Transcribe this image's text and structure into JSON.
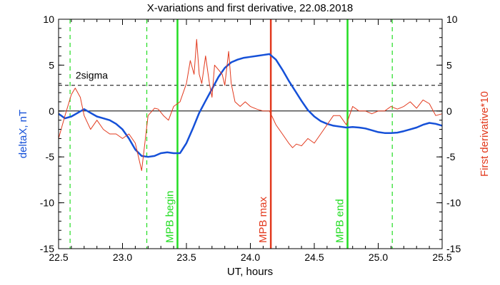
{
  "chart_data": {
    "type": "line",
    "title": "X-variations and first derivative, 22.08.2018",
    "xlabel": "UT, hours",
    "ylabel_left": "deltaX, nT",
    "ylabel_right": "First derivative*10",
    "xlim": [
      22.5,
      25.5
    ],
    "ylim": [
      -15,
      10
    ],
    "x_ticks": [
      "22.5",
      "23.0",
      "23.5",
      "24.0",
      "24.5",
      "25.0",
      "25.5"
    ],
    "y_ticks": [
      "10",
      "5",
      "0",
      "-5",
      "-10",
      "-15"
    ],
    "sigma": {
      "label": "2sigma",
      "value": 2.8
    },
    "colors": {
      "deltaX": "#1550d8",
      "derivative": "#e23a1e",
      "green": "#22dd22",
      "red": "#e23a1e",
      "axis": "#000000"
    },
    "vlines": [
      {
        "x": 22.59,
        "style": "dashed",
        "color": "green",
        "label": ""
      },
      {
        "x": 23.19,
        "style": "dashed",
        "color": "green",
        "label": ""
      },
      {
        "x": 23.43,
        "style": "solid",
        "color": "green",
        "label": "MPB begin"
      },
      {
        "x": 24.16,
        "style": "solid",
        "color": "red",
        "label": "MPB max"
      },
      {
        "x": 24.76,
        "style": "solid",
        "color": "green",
        "label": "MPB end"
      },
      {
        "x": 25.11,
        "style": "dashed",
        "color": "green",
        "label": ""
      }
    ],
    "series": [
      {
        "key": "deltaX",
        "x": [
          22.5,
          22.55,
          22.6,
          22.65,
          22.7,
          22.75,
          22.8,
          22.85,
          22.9,
          22.95,
          23.0,
          23.05,
          23.1,
          23.15,
          23.2,
          23.25,
          23.3,
          23.35,
          23.4,
          23.45,
          23.5,
          23.55,
          23.6,
          23.65,
          23.7,
          23.75,
          23.8,
          23.85,
          23.9,
          23.95,
          24.0,
          24.05,
          24.1,
          24.15,
          24.2,
          24.25,
          24.3,
          24.35,
          24.4,
          24.45,
          24.5,
          24.55,
          24.6,
          24.65,
          24.7,
          24.75,
          24.8,
          24.85,
          24.9,
          24.95,
          25.0,
          25.05,
          25.1,
          25.15,
          25.2,
          25.25,
          25.3,
          25.35,
          25.4,
          25.45,
          25.5
        ],
        "y": [
          -0.3,
          -0.8,
          -0.6,
          -0.2,
          0.2,
          -0.2,
          -0.6,
          -0.8,
          -1.0,
          -1.4,
          -2.0,
          -3.0,
          -4.2,
          -4.9,
          -5.0,
          -4.9,
          -4.6,
          -4.5,
          -4.6,
          -4.6,
          -3.5,
          -1.9,
          -0.2,
          1.1,
          2.4,
          3.7,
          4.7,
          5.3,
          5.6,
          5.8,
          5.9,
          6.0,
          6.1,
          6.2,
          5.6,
          4.5,
          3.3,
          2.2,
          1.1,
          0.1,
          -0.6,
          -1.1,
          -1.4,
          -1.6,
          -1.7,
          -1.8,
          -1.75,
          -1.8,
          -1.9,
          -2.1,
          -2.3,
          -2.4,
          -2.4,
          -2.35,
          -2.2,
          -2.0,
          -1.8,
          -1.5,
          -1.3,
          -1.4,
          -1.6
        ]
      },
      {
        "key": "derivative",
        "x": [
          22.5,
          22.55,
          22.6,
          22.63,
          22.67,
          22.7,
          22.75,
          22.8,
          22.85,
          22.9,
          22.95,
          23.0,
          23.05,
          23.1,
          23.15,
          23.2,
          23.25,
          23.28,
          23.32,
          23.36,
          23.4,
          23.45,
          23.5,
          23.53,
          23.56,
          23.58,
          23.6,
          23.62,
          23.65,
          23.68,
          23.7,
          23.72,
          23.75,
          23.78,
          23.8,
          23.83,
          23.85,
          23.88,
          23.92,
          23.96,
          24.0,
          24.05,
          24.1,
          24.15,
          24.2,
          24.25,
          24.3,
          24.33,
          24.36,
          24.4,
          24.45,
          24.5,
          24.55,
          24.6,
          24.65,
          24.7,
          24.75,
          24.8,
          24.85,
          24.9,
          24.95,
          25.0,
          25.05,
          25.1,
          25.15,
          25.2,
          25.25,
          25.3,
          25.35,
          25.4,
          25.45,
          25.5
        ],
        "y": [
          -3.0,
          -0.5,
          1.8,
          2.5,
          1.5,
          -0.5,
          -2.0,
          -1.0,
          -2.0,
          -2.5,
          -2.5,
          -3.0,
          -2.5,
          -3.5,
          -6.5,
          -0.5,
          0.3,
          0.2,
          -0.5,
          -1.0,
          0.5,
          1.0,
          3.0,
          5.5,
          4.0,
          7.8,
          4.0,
          3.0,
          6.0,
          3.0,
          1.5,
          5.0,
          4.5,
          4.0,
          2.8,
          6.5,
          3.0,
          1.0,
          0.5,
          1.0,
          0.5,
          0.2,
          0.0,
          0.0,
          -1.5,
          -2.5,
          -3.5,
          -4.0,
          -3.6,
          -3.8,
          -3.0,
          -3.5,
          -2.5,
          -1.5,
          -0.5,
          -0.5,
          -1.5,
          0.5,
          0.0,
          0.0,
          -0.3,
          0.0,
          0.0,
          0.5,
          0.2,
          0.5,
          1.0,
          0.3,
          1.2,
          0.8,
          -0.5,
          -0.3
        ]
      }
    ]
  }
}
